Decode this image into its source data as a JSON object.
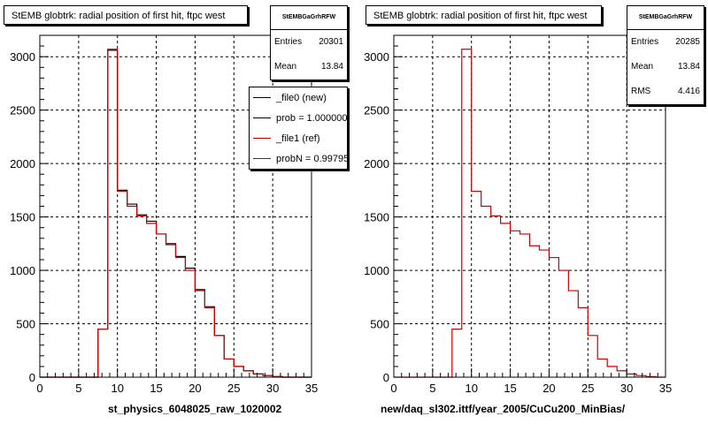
{
  "colors": {
    "new": "#000000",
    "ref": "#cc0000",
    "grid": "#000000",
    "frame": "#000000"
  },
  "chart_data": [
    {
      "type": "histogram",
      "title": "StEMB globtrk: radial position of first hit, ftpc west",
      "stats": {
        "header": "StEMBGaGrhRFW",
        "rows": [
          {
            "label": "Entries",
            "value": "20301"
          },
          {
            "label": "Mean",
            "value": "13.84"
          }
        ]
      },
      "legend": [
        {
          "label": "_file0 (new)",
          "color": "#000000"
        },
        {
          "label": "prob = 1.000000",
          "color": "#000000"
        },
        {
          "label": "_file1 (ref)",
          "color": "#cc0000"
        },
        {
          "label": "probN = 0.997950",
          "color": "#cc0000"
        }
      ],
      "xlabel": "st_physics_6048025_raw_1020002",
      "xlim": [
        0,
        35
      ],
      "ylim": [
        0,
        3200
      ],
      "xticks": [
        0,
        5,
        10,
        15,
        20,
        25,
        30,
        35
      ],
      "yticks": [
        0,
        500,
        1000,
        1500,
        2000,
        2500,
        3000
      ],
      "grid": true,
      "bin_edges": [
        0,
        1.25,
        2.5,
        3.75,
        5,
        6.25,
        7.5,
        8.75,
        10,
        11.25,
        12.5,
        13.75,
        15,
        16.25,
        17.5,
        18.75,
        20,
        21.25,
        22.5,
        23.75,
        25,
        26.25,
        27.5,
        28.75,
        30,
        31.25,
        32.5,
        33.75,
        35
      ],
      "series": [
        {
          "name": "_file0 (new)",
          "values": [
            0,
            0,
            0,
            0,
            0,
            0,
            450,
            3060,
            1750,
            1620,
            1520,
            1460,
            1340,
            1250,
            1130,
            1020,
            820,
            660,
            390,
            170,
            100,
            60,
            30,
            15,
            5,
            0,
            0,
            0
          ]
        },
        {
          "name": "_file1 (ref)",
          "values": [
            0,
            0,
            0,
            0,
            0,
            0,
            450,
            3070,
            1740,
            1600,
            1510,
            1440,
            1340,
            1240,
            1120,
            1000,
            810,
            650,
            390,
            170,
            100,
            60,
            30,
            15,
            5,
            0,
            0,
            0
          ]
        }
      ]
    },
    {
      "type": "histogram",
      "title": "StEMB globtrk: radial position of first hit, ftpc west",
      "stats": {
        "header": "StEMBGaGrhRFW",
        "rows": [
          {
            "label": "Entries",
            "value": "20285"
          },
          {
            "label": "Mean",
            "value": "13.84"
          },
          {
            "label": "RMS",
            "value": "4.416"
          }
        ]
      },
      "xlabel": "new/daq_sl302.ittf/year_2005/CuCu200_MinBias/",
      "xlim": [
        0,
        35
      ],
      "ylim": [
        0,
        3200
      ],
      "xticks": [
        0,
        5,
        10,
        15,
        20,
        25,
        30,
        35
      ],
      "yticks": [
        0,
        500,
        1000,
        1500,
        2000,
        2500,
        3000
      ],
      "grid": true,
      "bin_edges": [
        0,
        1.25,
        2.5,
        3.75,
        5,
        6.25,
        7.5,
        8.75,
        10,
        11.25,
        12.5,
        13.75,
        15,
        16.25,
        17.5,
        18.75,
        20,
        21.25,
        22.5,
        23.75,
        25,
        26.25,
        27.5,
        28.75,
        30,
        31.25,
        32.5,
        33.75,
        35
      ],
      "series": [
        {
          "name": "_file1 (ref)",
          "values": [
            0,
            0,
            0,
            0,
            0,
            0,
            450,
            3070,
            1740,
            1600,
            1510,
            1440,
            1370,
            1340,
            1230,
            1190,
            1120,
            1000,
            810,
            650,
            390,
            170,
            100,
            60,
            30,
            15,
            5,
            0
          ]
        }
      ]
    }
  ]
}
